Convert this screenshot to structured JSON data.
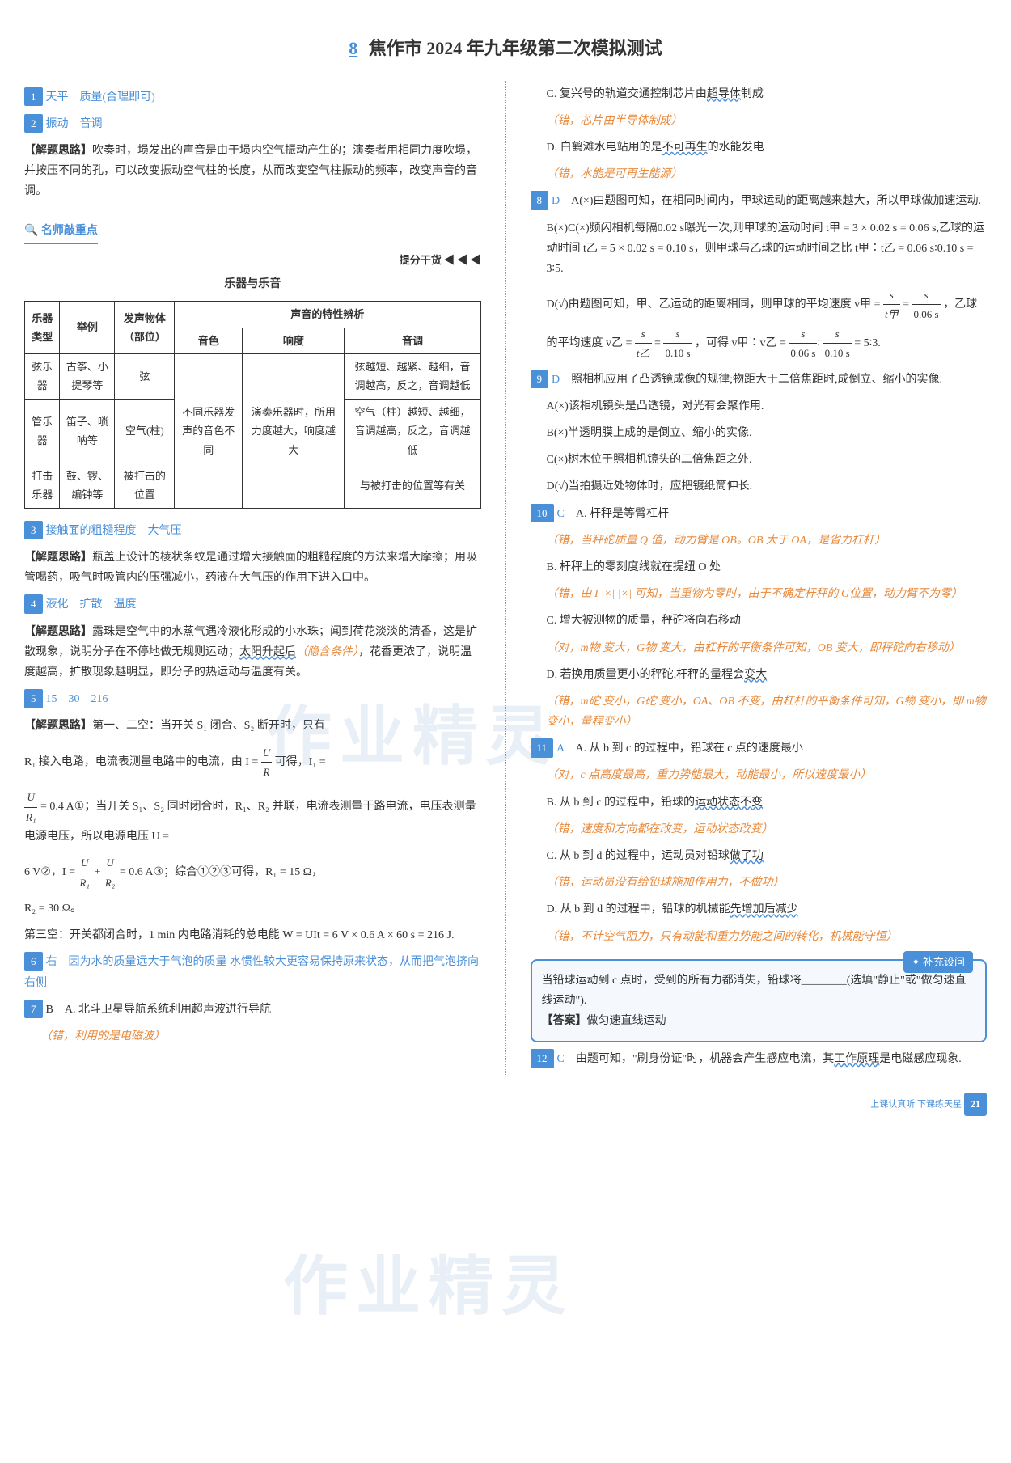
{
  "watermark": "作业精灵",
  "title": {
    "num": "8",
    "text": "焦作市 2024 年九年级第二次模拟测试"
  },
  "left": {
    "q1": {
      "num": "1",
      "ans": "天平　质量(合理即可)"
    },
    "q2": {
      "num": "2",
      "ans": "振动　音调",
      "explain_label": "【解题思路】",
      "explain": "吹奏时，埙发出的声音是由于埙内空气振动产生的；演奏者用相同力度吹埙，并按压不同的孔，可以改变振动空气柱的长度，从而改变空气柱振动的频率，改变声音的音调。"
    },
    "tips_header": "名师敲重点",
    "tips_right": "提分干货 ◀ ◀ ◀",
    "tips_title": "乐器与乐音",
    "table": {
      "headers": [
        "乐器类型",
        "举例",
        "发声物体（部位）",
        "声音的特性辨析"
      ],
      "sub_headers": [
        "音色",
        "响度",
        "音调"
      ],
      "rows": [
        {
          "type": "弦乐器",
          "example": "古筝、小提琴等",
          "body": "弦",
          "timbre_span": "不同乐器发声的音色不同",
          "loudness_span": "演奏乐器时，所用力度越大，响度越大",
          "pitch": "弦越短、越紧、越细，音调越高，反之，音调越低"
        },
        {
          "type": "管乐器",
          "example": "笛子、唢呐等",
          "body": "空气(柱)",
          "pitch": "空气（柱）越短、越细，音调越高，反之，音调越低"
        },
        {
          "type": "打击乐器",
          "example": "鼓、锣、编钟等",
          "body": "被打击的位置",
          "pitch": "与被打击的位置等有关"
        }
      ]
    },
    "q3": {
      "num": "3",
      "ans": "接触面的粗糙程度　大气压",
      "explain_label": "【解题思路】",
      "explain": "瓶盖上设计的棱状条纹是通过增大接触面的粗糙程度的方法来增大摩擦；用吸管喝药，吸气时吸管内的压强减小，药液在大气压的作用下进入口中。"
    },
    "q4": {
      "num": "4",
      "ans": "液化　扩散　温度",
      "explain_label": "【解题思路】",
      "explain_1": "露珠是空气中的水蒸气遇冷液化形成的小水珠；闻到荷花淡淡的清香，这是扩散现象，说明分子在不停地做无规则运动；",
      "explain_underline": "太阳升起后",
      "explain_note": "（隐含条件）",
      "explain_2": "，花香更浓了，说明温度越高，扩散现象越明显，即分子的热运动与温度有关。"
    },
    "q5": {
      "num": "5",
      "ans": "15　30　216",
      "explain_label": "【解题思路】",
      "p1": "第一、二空：当开关 S₁ 闭合、S₂ 断开时，只有",
      "p2a": "R₁ 接入电路，电流表测量电路中的电流，由 I = ",
      "frac1_top": "U",
      "frac1_bot": "R",
      "p2b": " 可得，I₁ =",
      "frac2_top": "U",
      "frac2_bot": "R₁",
      "p3": " = 0.4 A①；当开关 S₁、S₂ 同时闭合时，R₁、R₂ 并联，电流表测量干路电流，电压表测量电源电压，所以电源电压 U =",
      "p4a": "6 V②，I = ",
      "frac3_top": "U",
      "frac3_bot": "R₁",
      "p4b": " + ",
      "frac4_top": "U",
      "frac4_bot": "R₂",
      "p4c": " = 0.6 A③；综合①②③可得，R₁ = 15 Ω，",
      "p5": "R₂ = 30 Ω。",
      "p6": "第三空：开关都闭合时，1 min 内电路消耗的总电能 W = UIt = 6 V × 0.6 A × 60 s = 216 J."
    },
    "q6": {
      "num": "6",
      "ans": "右　因为水的质量远大于气泡的质量 水惯性较大更容易保持原来状态，从而把气泡挤向右侧"
    },
    "q7": {
      "num": "7",
      "ans": "B　A. 北斗卫星导航系统利用超声波进行导航",
      "note": "（错，利用的是电磁波）"
    }
  },
  "right": {
    "q7c": "C. 复兴号的轨道交通控制芯片由",
    "q7c_u": "超导体",
    "q7c_end": "制成",
    "q7c_note": "（错，芯片由半导体制成）",
    "q7d": "D. 白鹤滩水电站用的是",
    "q7d_u": "不可再生",
    "q7d_end": "的水能发电",
    "q7d_note": "（错，水能是可再生能源）",
    "q8": {
      "num": "8",
      "ans": "D",
      "a": "A(×)由题图可知，在相同时间内，甲球运动的距离越来越大，所以甲球做加速运动.",
      "bc": "B(×)C(×)频闪相机每隔0.02 s曝光一次,则甲球的运动时间 t甲 = 3 × 0.02 s = 0.06 s,乙球的运动时间 t乙 = 5 × 0.02 s = 0.10 s，则甲球与乙球的运动时间之比 t甲∶t乙 = 0.06 s∶0.10 s = 3∶5.",
      "d1": "D(√)由题图可知，甲、乙运动的距离相同，则甲球的平均速度 v甲 = ",
      "f1t": "s",
      "f1b": "t甲",
      "f2t": "s",
      "f2b": "0.06 s",
      "d2": "，乙球的平均速度 v乙 = ",
      "f3t": "s",
      "f3b": "t乙",
      "f4t": "s",
      "f4b": "0.10 s",
      "d3": "，可得 v甲∶v乙 = ",
      "f5t": "s",
      "f5b": "0.06 s",
      "f6t": "s",
      "f6b": "0.10 s",
      "d4": " = 5∶3."
    },
    "q9": {
      "num": "9",
      "ans": "D",
      "intro": "照相机应用了凸透镜成像的规律;物距大于二倍焦距时,成倒立、缩小的实像.",
      "a": "A(×)该相机镜头是凸透镜，对光有会聚作用.",
      "b": "B(×)半透明膜上成的是倒立、缩小的实像.",
      "c": "C(×)树木位于照相机镜头的二倍焦距之外.",
      "d": "D(√)当拍摄近处物体时，应把镀纸筒伸长."
    },
    "q10": {
      "num": "10",
      "ans": "C",
      "a": "A. 杆秤是等臂杠杆",
      "a_note": "（错，当秤砣质量 Q 值，动力臂是 OB。OB 大于 OA，是省力杠杆）",
      "b": "B. 杆秤上的零刻度线就在提纽 O 处",
      "b_note": "（错，由 I |×| |×| 可知，当重物为零时，由于不确定杆秤的 G位置，动力臂不为零）",
      "c": "C. 增大被测物的质量，秤砣将向右移动",
      "c_note": "（对，m物 变大，G物 变大，由杠杆的平衡条件可知，OB 变大，即秤砣向右移动）",
      "d": "D. 若换用质量更小的秤砣,杆秤的量程会",
      "d_u": "变大",
      "d_note": "（错，m砣 变小，G砣 变小，OA、OB 不变，由杠杆的平衡条件可知，G物 变小，即 m物 变小，量程变小）"
    },
    "q11": {
      "num": "11",
      "ans": "A",
      "a": "A. 从 b 到 c 的过程中，铅球在 c 点的速度最小",
      "a_note": "（对，c 点高度最高，重力势能最大，动能最小，所以速度最小）",
      "b": "B. 从 b 到 c 的过程中，铅球的",
      "b_u": "运动状态不变",
      "b_note": "（错，速度和方向都在改变，运动状态改变）",
      "c": "C. 从 b 到 d 的过程中，运动员对铅球",
      "c_u": "做了功",
      "c_note": "（错，运动员没有给铅球施加作用力，不做功）",
      "d": "D. 从 b 到 d 的过程中，铅球的机械能",
      "d_u": "先增加后减少",
      "d_note": "（错，不计空气阻力，只有动能和重力势能之间的转化，机械能守恒）"
    },
    "sup": {
      "title": "补充设问",
      "text1": "当铅球运动到 c 点时，受到的所有力都消失，铅球将",
      "blank": "________",
      "text2": "(选填\"静止\"或\"做匀速直线运动\").",
      "ans_label": "【答案】",
      "ans": "做匀速直线运动"
    },
    "q12": {
      "num": "12",
      "ans": "C",
      "text": "由题可知，\"刷身份证\"时，机器会产生感应电流，其",
      "u": "工作原理",
      "end": "是电磁感应现象."
    }
  },
  "footer": {
    "text": "上课认真听 下课练天星",
    "page": "21"
  }
}
